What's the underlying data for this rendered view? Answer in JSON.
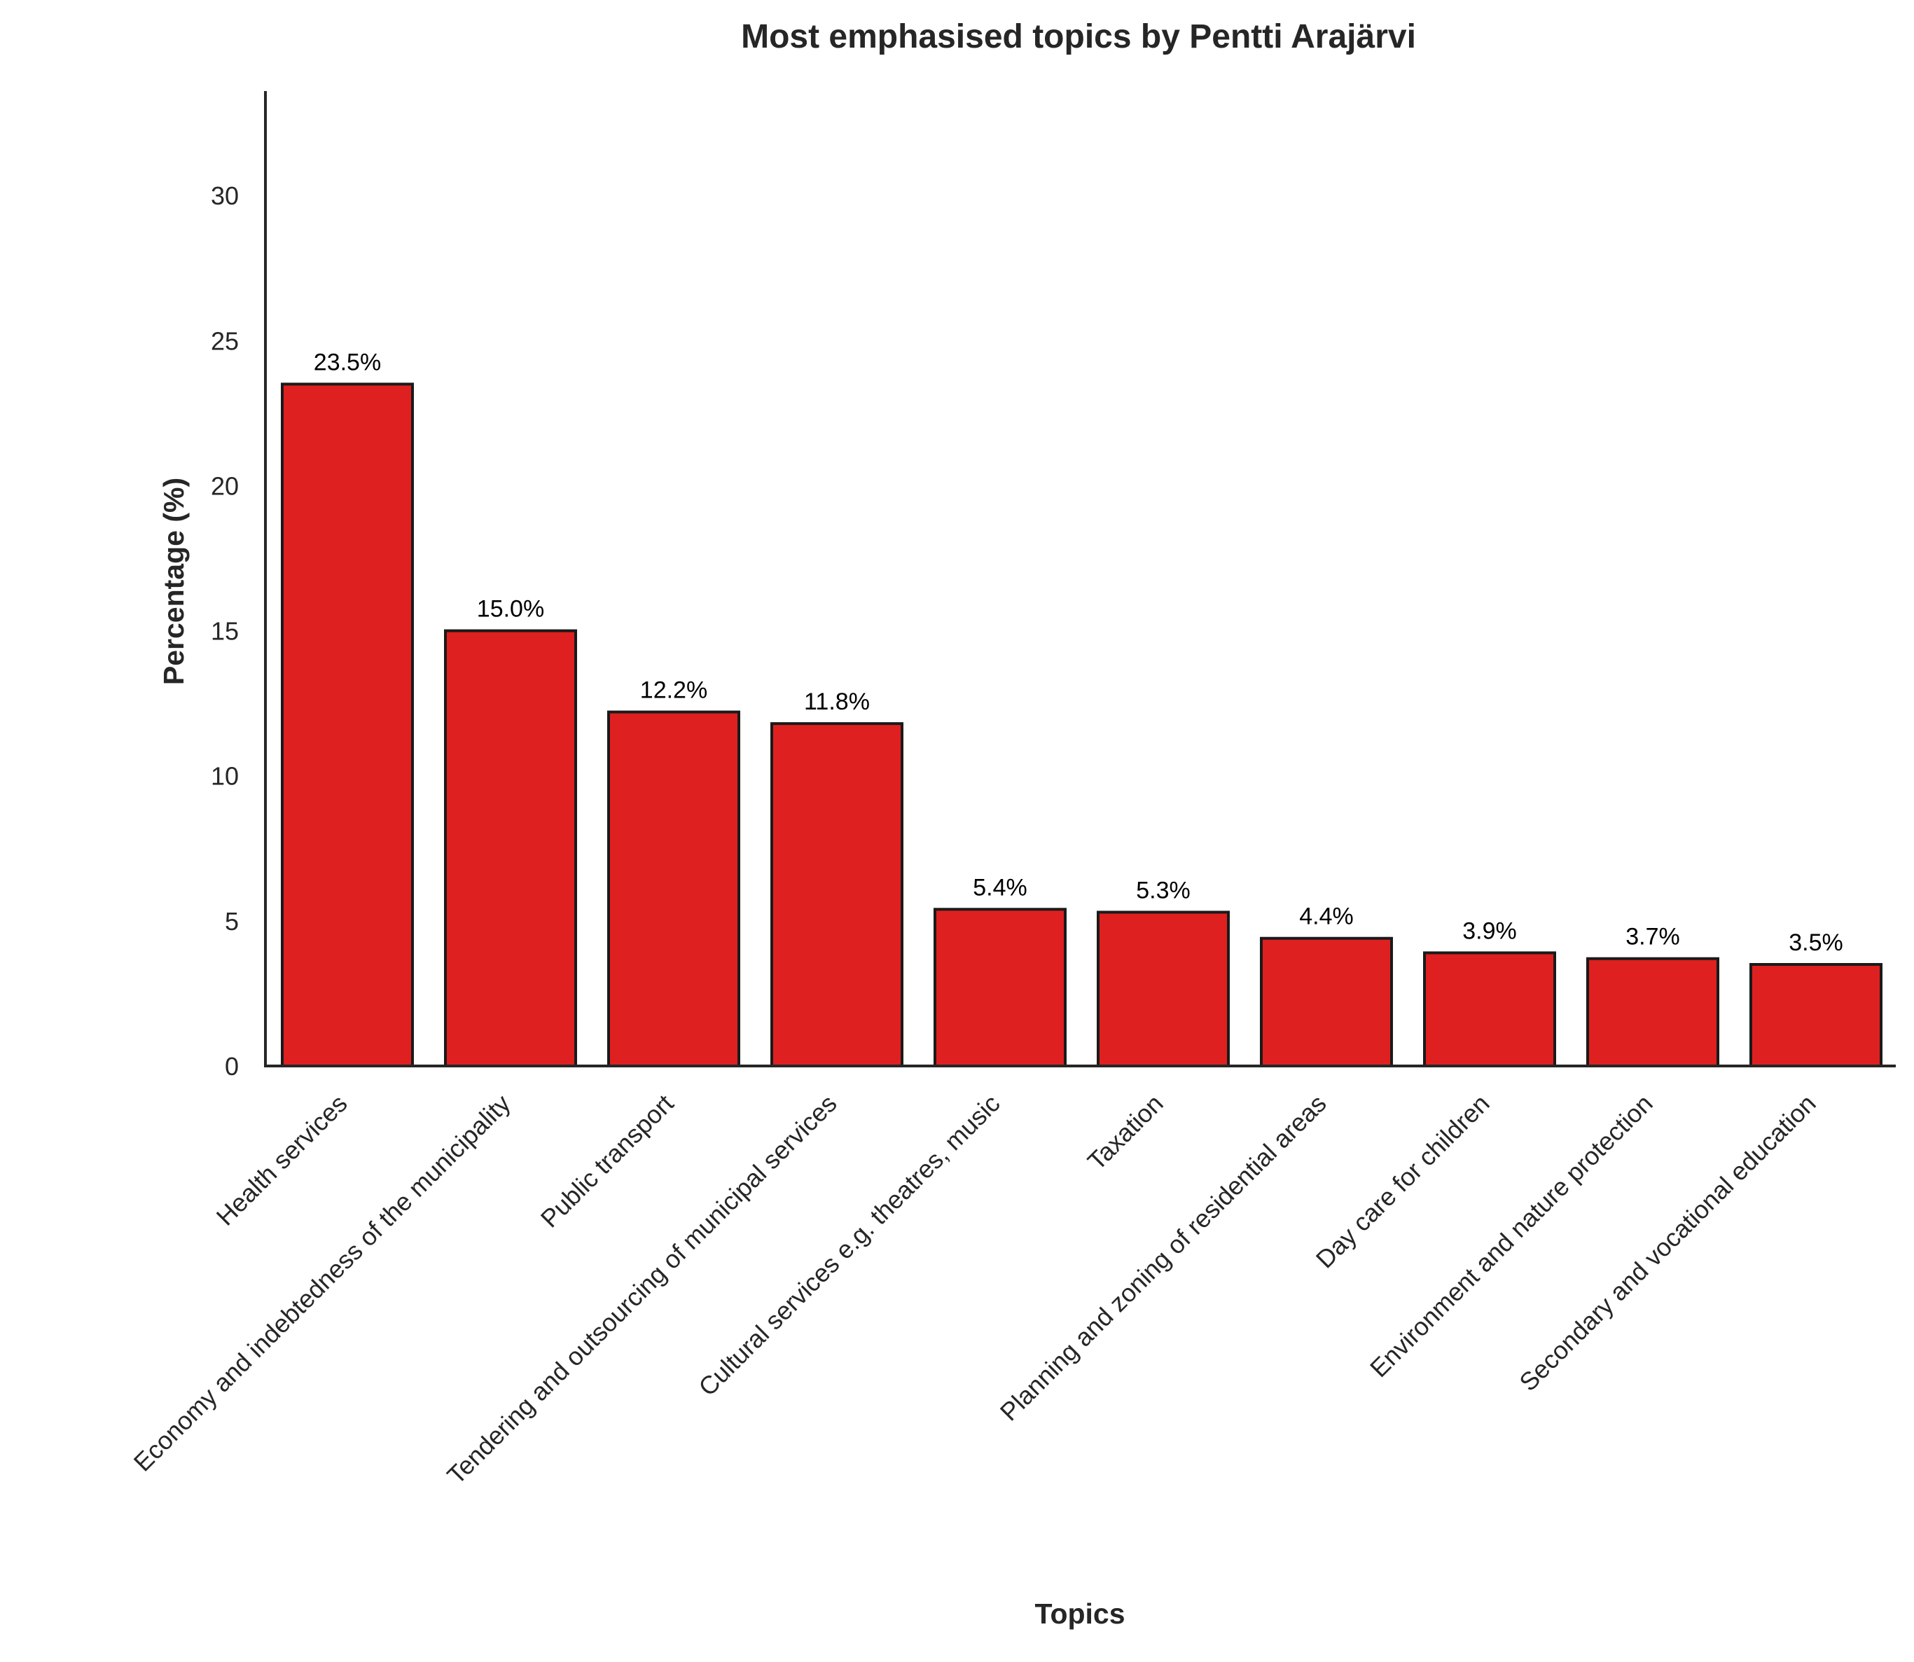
{
  "chart_data": {
    "type": "bar",
    "title": "Most emphasised topics by Pentti Arajärvi",
    "xlabel": "Topics",
    "ylabel": "Percentage (%)",
    "categories": [
      "Health services",
      "Economy and indebtedness of the municipality",
      "Public transport",
      "Tendering and outsourcing of municipal services",
      "Cultural services e.g. theatres, music",
      "Taxation",
      "Planning and zoning of residential areas",
      "Day care for children",
      "Environment and nature protection",
      "Secondary and vocational education"
    ],
    "values": [
      23.5,
      15.0,
      12.2,
      11.8,
      5.4,
      5.3,
      4.4,
      3.9,
      3.7,
      3.5
    ],
    "data_labels": [
      "23.5%",
      "15.0%",
      "12.2%",
      "11.8%",
      "5.4%",
      "5.3%",
      "4.4%",
      "3.9%",
      "3.7%",
      "3.5%"
    ],
    "ylim": [
      0,
      33.6
    ],
    "yticks": [
      0,
      5,
      10,
      15,
      20,
      25,
      30
    ],
    "bar_color": "#df2020",
    "edge_color": "#1a1a1a",
    "grid": false,
    "legend": "none"
  }
}
